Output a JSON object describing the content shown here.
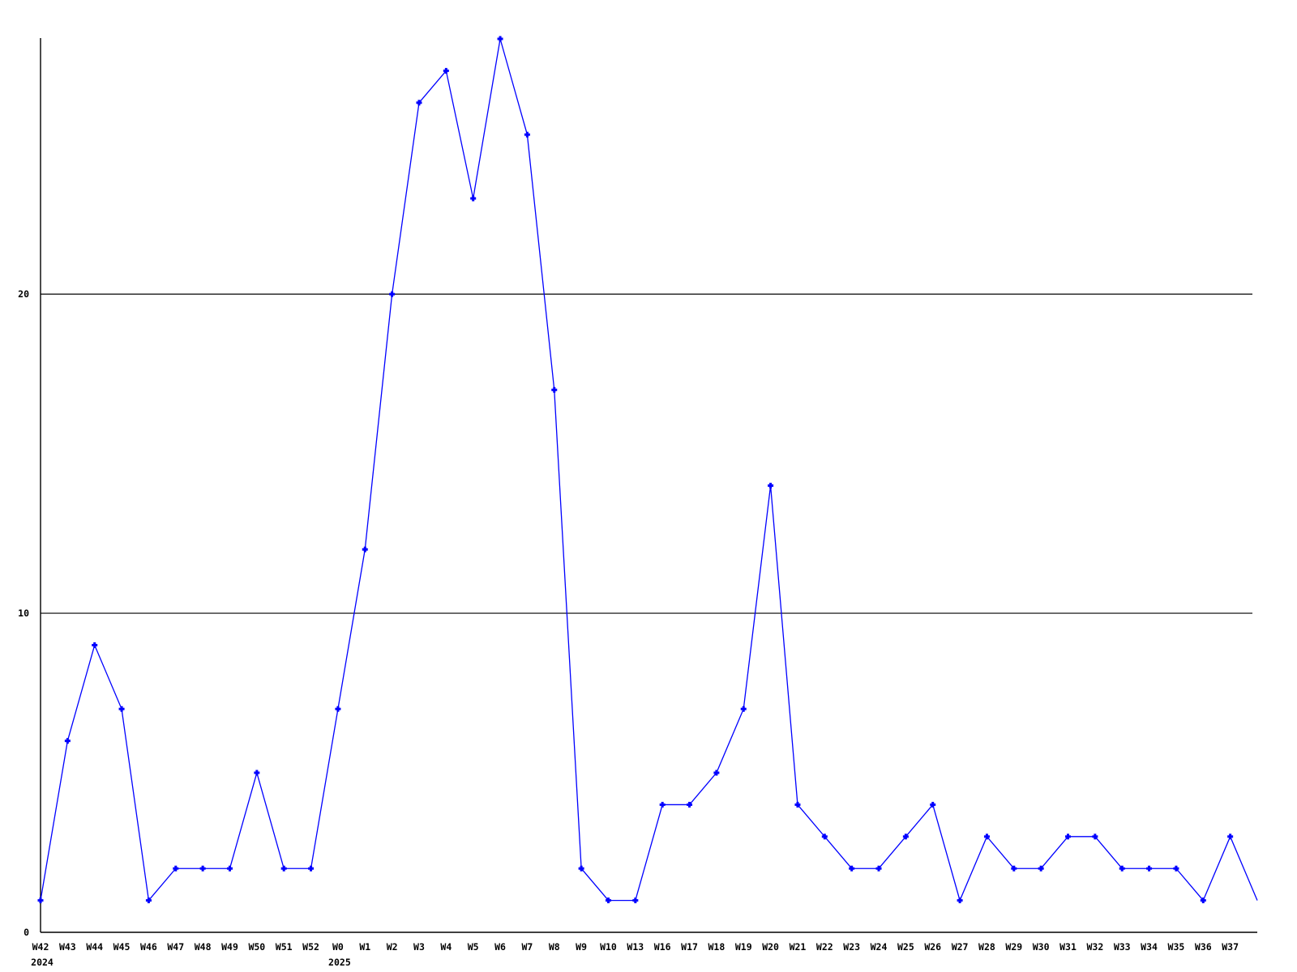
{
  "chart_data": {
    "type": "line",
    "title": "",
    "xlabel": "",
    "ylabel": "",
    "legend": "none",
    "grid": true,
    "background_color": "#ffffff",
    "axis_color": "#000000",
    "text_color": "#000000",
    "line_color": "#0000ff",
    "marker": "plus",
    "ylim": [
      0,
      28
    ],
    "yticks": [
      0,
      10,
      20
    ],
    "x_labels": [
      "W42",
      "W43",
      "W44",
      "W45",
      "W46",
      "W47",
      "W48",
      "W49",
      "W50",
      "W51",
      "W52",
      "W0",
      "W1",
      "W2",
      "W3",
      "W4",
      "W5",
      "W6",
      "W7",
      "W8",
      "W9",
      "W10",
      "W13",
      "W16",
      "W17",
      "W18",
      "W19",
      "W20",
      "W21",
      "W22",
      "W23",
      "W24",
      "W25",
      "W26",
      "W27",
      "W28",
      "W29",
      "W30",
      "W31",
      "W32",
      "W33",
      "W34",
      "W35",
      "W36",
      "W37"
    ],
    "year_markers": [
      {
        "x_index": 0,
        "label": "2024"
      },
      {
        "x_index": 11,
        "label": "2025"
      }
    ],
    "values": [
      1,
      6,
      9,
      7,
      1,
      2,
      2,
      2,
      5,
      2,
      2,
      7,
      12,
      20,
      26,
      27,
      23,
      28,
      25,
      17,
      2,
      1,
      1,
      4,
      4,
      5,
      7,
      14,
      4,
      3,
      2,
      2,
      3,
      4,
      1,
      3,
      2,
      2,
      3,
      3,
      2,
      2,
      2,
      1,
      3
    ],
    "trailing_clipped_value": 1
  }
}
